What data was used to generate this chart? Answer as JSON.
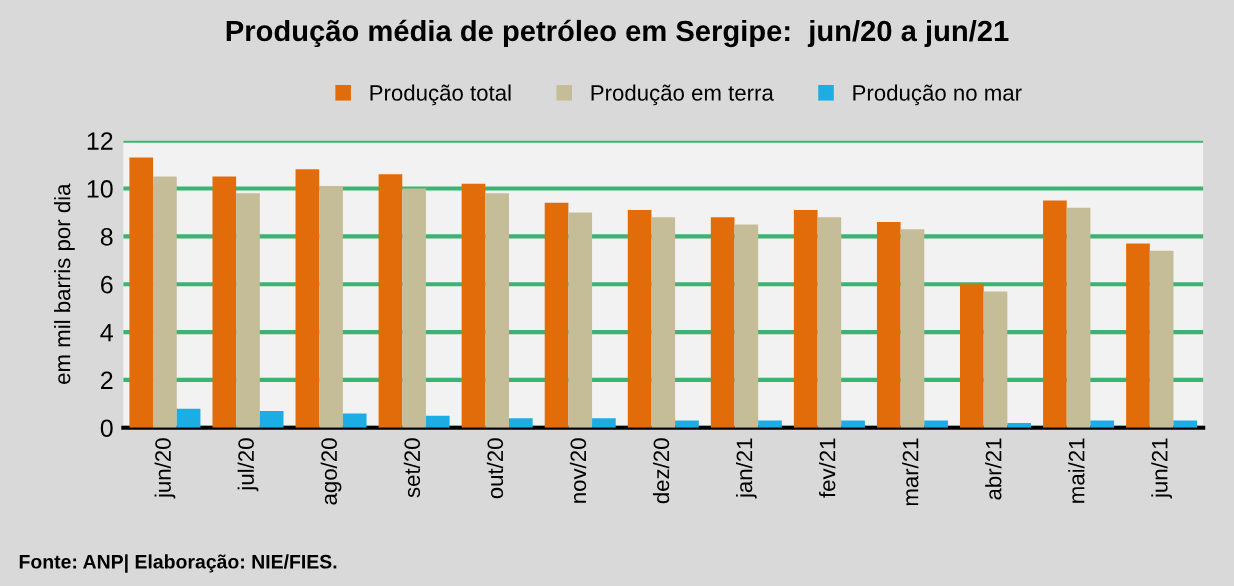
{
  "chart_data": {
    "type": "bar",
    "title": "Produção média de petróleo em Sergipe:  jun/20 a jun/21",
    "ylabel": "em mil barris por dia",
    "categories": [
      "jun/20",
      "jul/20",
      "ago/20",
      "set/20",
      "out/20",
      "nov/20",
      "dez/20",
      "jan/21",
      "fev/21",
      "mar/21",
      "abr/21",
      "mai/21",
      "jun/21"
    ],
    "series": [
      {
        "name": "Produção total",
        "color": "#e36c0a",
        "values": [
          11.3,
          10.5,
          10.8,
          10.6,
          10.2,
          9.4,
          9.1,
          8.8,
          9.1,
          8.6,
          6.0,
          9.5,
          7.7
        ]
      },
      {
        "name": "Produção em terra",
        "color": "#c4bd97",
        "values": [
          10.5,
          9.8,
          10.1,
          10.0,
          9.8,
          9.0,
          8.8,
          8.5,
          8.8,
          8.3,
          5.7,
          9.2,
          7.4
        ]
      },
      {
        "name": "Produção no mar",
        "color": "#1cade4",
        "values": [
          0.8,
          0.7,
          0.6,
          0.5,
          0.4,
          0.4,
          0.3,
          0.3,
          0.3,
          0.3,
          0.2,
          0.3,
          0.3
        ]
      }
    ],
    "ylim": [
      0,
      12
    ],
    "yticks": [
      0,
      2,
      4,
      6,
      8,
      10,
      12
    ],
    "grid": "y",
    "legend": "top",
    "annotations": [
      "Fonte: ANP| Elaboração: NIE/FIES."
    ]
  }
}
